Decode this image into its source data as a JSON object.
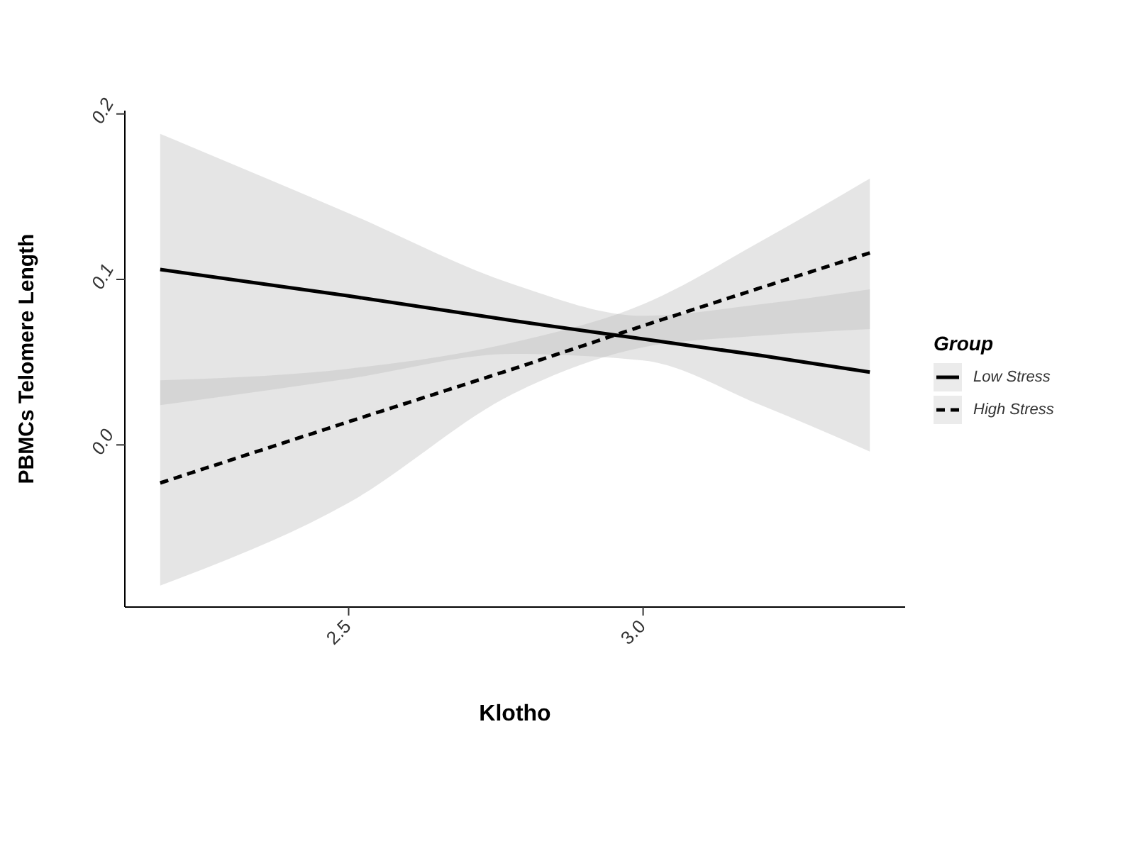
{
  "chart_data": {
    "type": "line",
    "xlabel": "Klotho",
    "ylabel": "PBMCs Telomere Length",
    "legend_title": "Group",
    "legend": "right",
    "marker": "none",
    "xlim": [
      2.12,
      3.445
    ],
    "xticks": [
      2.5,
      {
        "value": 3,
        "label": "3.0"
      }
    ],
    "ylim": [
      -0.098,
      0.202
    ],
    "yticks": [
      {
        "value": 0,
        "label": "0.0"
      },
      0.1,
      0.2
    ],
    "series": [
      {
        "name": "Low Stress",
        "color": "#000000",
        "line_style": "solid",
        "x": [
          2.18,
          2.5,
          2.78,
          3.0,
          3.2,
          3.385
        ],
        "values": [
          0.106,
          0.09,
          0.075,
          0.064,
          0.054,
          0.044
        ],
        "lower": [
          0.024,
          0.04,
          0.055,
          0.051,
          0.024,
          -0.004
        ],
        "upper": [
          0.188,
          0.14,
          0.097,
          0.078,
          0.085,
          0.094
        ]
      },
      {
        "name": "High Stress",
        "color": "#000000",
        "line_style": "dashed",
        "x": [
          2.18,
          2.5,
          2.78,
          3.0,
          3.2,
          3.385
        ],
        "values": [
          -0.023,
          0.014,
          0.046,
          0.072,
          0.095,
          0.116
        ],
        "lower": [
          -0.085,
          -0.035,
          0.031,
          0.059,
          0.066,
          0.07
        ],
        "upper": [
          0.039,
          0.046,
          0.062,
          0.085,
          0.123,
          0.161
        ]
      }
    ]
  }
}
